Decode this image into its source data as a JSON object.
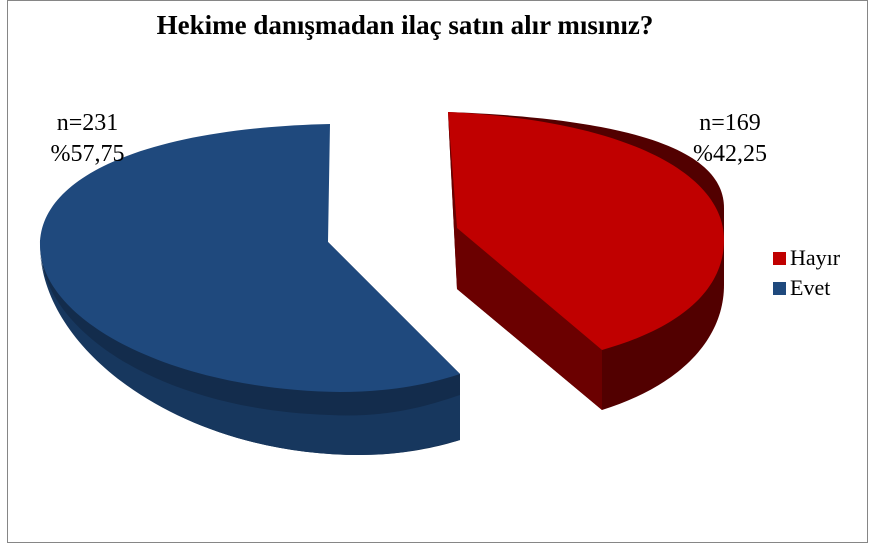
{
  "chart_data": {
    "type": "pie",
    "title": "Hekime danışmadan ilaç satın alır mısınız?",
    "slices": [
      {
        "label": "Hayır",
        "n_label": "n=169",
        "pct_label": "%42,25",
        "value": 42.25,
        "color": "#c00000",
        "side_color": "#520000"
      },
      {
        "label": "Evet",
        "n_label": "n=231",
        "pct_label": "%57,75",
        "value": 57.75,
        "color": "#1f497d",
        "side_color": "#132c4c"
      }
    ],
    "legend_position": "right",
    "exploded": true,
    "style": "3d"
  }
}
